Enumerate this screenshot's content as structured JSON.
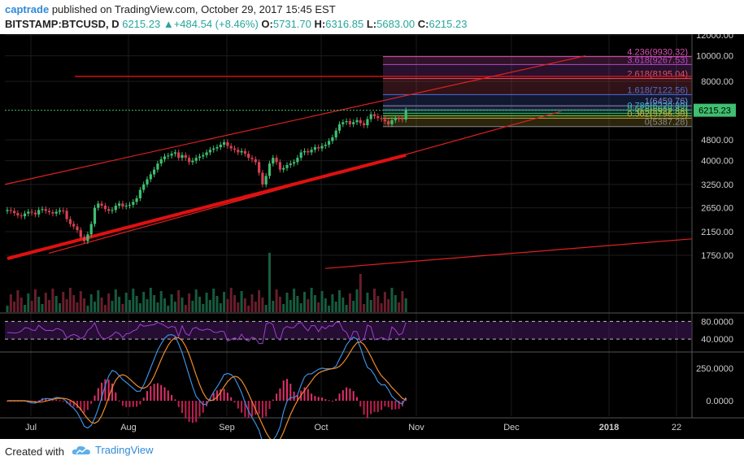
{
  "header": {
    "user": "captrade",
    "published_text": "published on TradingView.com, October 29, 2017 15:45 EST",
    "symbol": "BITSTAMP:BTCUSD, D",
    "last": "6215.23",
    "change": "+484.54 (+8.46%)",
    "o_label": "O:",
    "o": "5731.70",
    "h_label": "H:",
    "h": "6316.85",
    "l_label": "L:",
    "l": "5683.00",
    "c_label": "C:",
    "c": "6215.23"
  },
  "footer": {
    "created": "Created with",
    "brand": "TradingView"
  },
  "chart_data": {
    "type": "candlestick",
    "price_axis_ticks": [
      "12000.00",
      "10000.00",
      "8000.00",
      "6215.23",
      "4800.00",
      "4000.00",
      "3250.00",
      "2650.00",
      "2150.00",
      "1750.00"
    ],
    "price_axis_values": [
      12000,
      10000,
      8000,
      6215.23,
      4800,
      4000,
      3250,
      2650,
      2150,
      1750
    ],
    "last_price": 6215.23,
    "scale": "log",
    "x_ticks": [
      "Jul",
      "Aug",
      "Sep",
      "Oct",
      "Nov",
      "Dec",
      "2018",
      "22"
    ],
    "fib_levels": [
      {
        "label": "4.236(9930.32)",
        "ratio": 4.236,
        "value": 9930.32,
        "color": "#e052b8"
      },
      {
        "label": "3.618(9267.53)",
        "ratio": 3.618,
        "value": 9267.53,
        "color": "#b04cc9"
      },
      {
        "label": "2.618(8195.04)",
        "ratio": 2.618,
        "value": 8195.04,
        "color": "#e05363"
      },
      {
        "label": "1.618(7122.56)",
        "ratio": 1.618,
        "value": 7122.56,
        "color": "#4c6fd9"
      },
      {
        "label": "1(6459.76)",
        "ratio": 1,
        "value": 6459.76,
        "color": "#8a8acc"
      },
      {
        "label": "0.786(6229.89)",
        "ratio": 0.786,
        "value": 6229.89,
        "color": "#3db3c9"
      },
      {
        "label": "0.618(6049.43)",
        "ratio": 0.618,
        "value": 6049.43,
        "color": "#3db36e"
      },
      {
        "label": "0.5(5922.86)",
        "ratio": 0.5,
        "value": 5922.86,
        "color": "#8ac93d"
      },
      {
        "label": "0.382(5796.30)",
        "ratio": 0.382,
        "value": 5796.3,
        "color": "#c9a83d"
      },
      {
        "label": "0(5387.28)",
        "ratio": 0,
        "value": 5387.28,
        "color": "#888888"
      }
    ],
    "closes": [
      2600,
      2580,
      2530,
      2480,
      2460,
      2520,
      2560,
      2540,
      2500,
      2600,
      2620,
      2580,
      2550,
      2520,
      2560,
      2590,
      2580,
      2400,
      2300,
      2250,
      2180,
      2050,
      1980,
      2100,
      2300,
      2650,
      2750,
      2700,
      2620,
      2580,
      2600,
      2700,
      2750,
      2680,
      2700,
      2720,
      2790,
      2880,
      3100,
      3250,
      3400,
      3550,
      3700,
      3900,
      4050,
      4150,
      4180,
      4250,
      4300,
      4100,
      4200,
      4100,
      3950,
      4000,
      4100,
      4150,
      4200,
      4300,
      4400,
      4450,
      4500,
      4600,
      4700,
      4550,
      4450,
      4400,
      4300,
      4350,
      4250,
      4100,
      4050,
      3950,
      3600,
      3250,
      3500,
      3900,
      4100,
      3950,
      3700,
      3750,
      3850,
      3900,
      3950,
      4100,
      4300,
      4350,
      4300,
      4400,
      4500,
      4450,
      4550,
      4600,
      4750,
      4900,
      5200,
      5500,
      5600,
      5650,
      5500,
      5600,
      5700,
      5550,
      5450,
      5750,
      6000,
      5900,
      5800,
      5750,
      5650,
      5500,
      5700,
      5800,
      5750,
      5731,
      6215
    ],
    "rsi_levels": [
      80,
      40
    ],
    "rsi_axis_ticks": [
      "80.0000",
      "40.0000"
    ],
    "macd_axis_ticks": [
      "250.0000",
      "0.0000"
    ]
  }
}
